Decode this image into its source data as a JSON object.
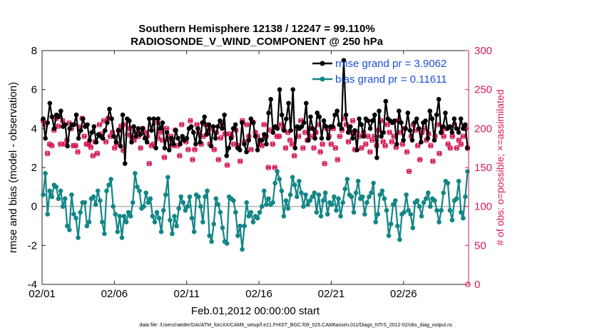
{
  "chart_data": {
    "type": "line",
    "title": "Southern Hemisphere 12138 / 12247 = 99.110%",
    "subtitle": "RADIOSONDE_V_WIND_COMPONENT @ 250 hPa",
    "xlabel": "Feb.01,2012 00:00:00 start",
    "ylabel": "rmse and bias (model - observation)",
    "y2label": "# of obs: o=possible; ×=assimilated",
    "footnote": "data file: /Users/raeder/DAI/ATM_forcXX/CAM6_setup/f.e21.FHIST_BGC.f09_025.CAM6assim.011/Diags_NTrS_2012-02/obs_diag_output.nc",
    "xlim": [
      0,
      29.5
    ],
    "ylim": [
      -4,
      8
    ],
    "y2lim": [
      0,
      300
    ],
    "xticks": [
      0,
      5,
      10,
      15,
      20,
      25
    ],
    "xtick_labels": [
      "02/01",
      "02/06",
      "02/11",
      "02/16",
      "02/21",
      "02/26"
    ],
    "yticks": [
      -4,
      -2,
      0,
      2,
      4,
      6,
      8
    ],
    "ytick_labels": [
      "-4",
      "-2",
      "0",
      "2",
      "4",
      "6",
      "8"
    ],
    "y2ticks": [
      0,
      50,
      100,
      150,
      200,
      250,
      300
    ],
    "y2tick_labels": [
      "0",
      "50",
      "100",
      "150",
      "200",
      "250",
      "300"
    ],
    "legend_position": "top-right",
    "colors": {
      "rmse": "#000000",
      "bias": "#138686",
      "obs": "#d6195a",
      "zero_line": "#b3b3b3",
      "legend_text": "#1a4fd6"
    },
    "series": [
      {
        "name": "rmse grand pr = 3.9062",
        "values": [
          4.5,
          3.5,
          4.3,
          5.3,
          4.6,
          4.0,
          4.7,
          4.6,
          4.9,
          4.1,
          4.2,
          3.1,
          4.0,
          4.2,
          4.2,
          4.7,
          3.5,
          3.9,
          4.5,
          4.1,
          4.2,
          3.4,
          3.8,
          4.1,
          3.3,
          3.7,
          3.6,
          3.5,
          3.9,
          4.3,
          5.0,
          4.5,
          3.6,
          3.3,
          3.9,
          3.1,
          4.7,
          2.2,
          4.5,
          4.4,
          3.3,
          4.1,
          3.6,
          4.0,
          3.7,
          4.0,
          3.5,
          3.3,
          4.5,
          3.9,
          4.5,
          3.0,
          4.5,
          4.0,
          4.3,
          3.0,
          3.8,
          2.9,
          3.5,
          3.2,
          3.9,
          3.5,
          3.2,
          3.6,
          3.4,
          3.5,
          4.0,
          4.1,
          3.8,
          3.2,
          4.0,
          3.3,
          4.3,
          4.6,
          3.7,
          4.2,
          3.1,
          4.1,
          3.5,
          4.1,
          4.4,
          4.0,
          4.7,
          2.6,
          3.0,
          3.5,
          4.0,
          4.2,
          3.0,
          2.9,
          4.3,
          3.2,
          2.8,
          3.4,
          4.5,
          4.3,
          3.6,
          2.9,
          3.4,
          3.4,
          3.7,
          3.2,
          4.8,
          5.5,
          3.8,
          4.1,
          4.0,
          6.0,
          4.7,
          3.9,
          4.5,
          5.3,
          3.9,
          6.0,
          3.0,
          4.1,
          4.0,
          4.1,
          4.3,
          5.3,
          3.4,
          4.6,
          4.0,
          3.5,
          4.8,
          4.6,
          3.5,
          4.4,
          4.1,
          3.5,
          4.1,
          4.1,
          4.7,
          4.9,
          4.2,
          4.0,
          7.5,
          4.7,
          3.8,
          4.1,
          3.5,
          3.9,
          2.9,
          4.5,
          4.2,
          3.6,
          4.5,
          4.4,
          4.0,
          4.4,
          4.7,
          2.5,
          4.9,
          3.6,
          3.8,
          5.4,
          4.5,
          4.4,
          4.3,
          4.4,
          3.2,
          4.9,
          4.3,
          3.4,
          4.0,
          4.8,
          3.9,
          3.4,
          4.3,
          4.5,
          4.0,
          3.3,
          4.3,
          4.4,
          3.5,
          4.9,
          4.5,
          3.4,
          4.7,
          5.5,
          3.8,
          4.1,
          4.8,
          4.0,
          4.1,
          3.8,
          4.5,
          4.0,
          3.8,
          4.5,
          4.0,
          4.2,
          3.0
        ],
        "rmse_values_note": ""
      },
      {
        "name": "bias grand pr = 0.11611",
        "values": [
          0.6,
          1.7,
          -0.4,
          0.8,
          0.5,
          1.1,
          1.0,
          0.4,
          0.8,
          0.0,
          0.4,
          -1.0,
          -1.2,
          0.6,
          -0.4,
          -0.6,
          -1.6,
          -0.3,
          0.2,
          0.2,
          -1.0,
          -0.8,
          0.4,
          0.5,
          0.1,
          0.8,
          0.3,
          -0.8,
          -1.4,
          0.8,
          1.1,
          1.4,
          0.0,
          -0.4,
          -1.3,
          -0.5,
          -1.6,
          -0.5,
          -0.8,
          -0.3,
          -0.5,
          0.2,
          1.7,
          1.0,
          0.8,
          -0.1,
          0.0,
          0.7,
          0.2,
          0.4,
          -0.5,
          -0.8,
          -0.3,
          -0.6,
          -1.3,
          -0.2,
          0.6,
          1.5,
          -0.7,
          -1.4,
          -0.5,
          -1.0,
          -0.1,
          0.5,
          0.2,
          -0.2,
          0.0,
          0.5,
          -0.6,
          -1.3,
          0.6,
          0.5,
          0.0,
          -0.8,
          0.5,
          0.8,
          -1.5,
          -1.8,
          -0.9,
          0.4,
          0.1,
          -0.3,
          -1.1,
          -1.8,
          -1.9,
          0.5,
          0.4,
          0.3,
          -0.3,
          -1.5,
          -1.0,
          -2.2,
          -1.0,
          0.2,
          -0.5,
          -0.3,
          -0.8,
          -0.5,
          -0.6,
          -0.3,
          0.0,
          0.8,
          0.1,
          0.4,
          0.1,
          0.2,
          1.2,
          1.8,
          1.4,
          0.8,
          -0.5,
          0.3,
          -0.1,
          0.6,
          1.5,
          1.1,
          0.5,
          1.3,
          0.7,
          0.0,
          0.6,
          0.1,
          0.3,
          0.5,
          0.7,
          -0.3,
          0.6,
          -0.5,
          0.3,
          0.7,
          -0.4,
          0.2,
          0.1,
          0.5,
          -0.2,
          0.4,
          -0.5,
          0.2,
          0.9,
          1.4,
          0.6,
          0.5,
          -0.3,
          0.7,
          1.3,
          0.4,
          0.5,
          -0.4,
          0.2,
          0.5,
          0.7,
          1.2,
          -0.8,
          -0.4,
          0.6,
          0.8,
          0.4,
          -0.2,
          -1.5,
          -0.9,
          0.1,
          0.3,
          -1.0,
          -1.7,
          -0.4,
          -0.3,
          0.6,
          -0.2,
          -0.4,
          -1.1,
          0.2,
          0.3,
          0.0,
          -0.5,
          0.2,
          0.4,
          0.7,
          0.0,
          0.4,
          0.3,
          -0.2,
          -0.8,
          -0.2,
          0.7,
          1.3,
          1.2,
          -0.2,
          -0.7,
          0.3,
          0.4,
          1.3,
          -0.3,
          -0.6,
          0.5,
          1.8
        ]
      }
    ],
    "obs_count_note": "",
    "obs_counts": [
      210,
      205,
      168,
      180,
      178,
      198,
      213,
      203,
      180,
      210,
      180,
      185,
      207,
      200,
      178,
      178,
      170,
      202,
      213,
      190,
      180,
      180,
      176,
      165,
      183,
      168,
      205,
      193,
      210,
      183,
      213,
      190,
      195,
      175,
      180,
      198,
      203,
      172,
      205,
      192,
      200,
      188,
      185,
      195,
      190,
      175,
      200,
      195,
      190,
      155,
      178,
      180,
      208,
      188,
      195,
      185,
      163,
      200,
      186,
      190,
      178,
      198,
      178,
      165,
      205,
      185,
      183,
      173,
      210,
      160,
      173,
      205,
      195,
      180,
      190,
      205,
      195,
      180,
      200,
      173,
      195,
      160,
      188,
      205,
      193,
      153,
      193,
      190,
      180,
      198,
      178,
      158,
      210,
      183,
      205,
      190,
      173,
      208,
      195,
      190,
      180,
      178,
      205,
      190,
      150,
      198,
      180,
      150,
      190,
      190,
      205,
      200,
      175,
      195,
      185,
      180,
      165,
      200,
      190,
      210,
      175,
      195,
      185,
      200,
      190,
      175,
      195,
      205,
      170,
      180,
      155,
      200,
      190,
      180,
      200,
      175,
      160,
      190,
      198,
      213,
      205,
      183,
      195,
      210,
      173,
      195,
      190,
      175,
      195,
      180,
      190,
      170,
      185,
      190,
      178,
      198,
      210,
      183,
      178,
      205,
      195,
      183,
      190,
      176,
      210,
      195,
      180,
      200,
      170,
      145,
      190,
      205,
      198,
      178,
      160,
      195,
      200,
      185,
      193,
      178,
      158,
      190,
      205,
      168,
      195,
      190,
      200,
      180,
      175,
      190,
      205,
      175,
      185,
      180,
      190,
      200,
      175
    ]
  }
}
